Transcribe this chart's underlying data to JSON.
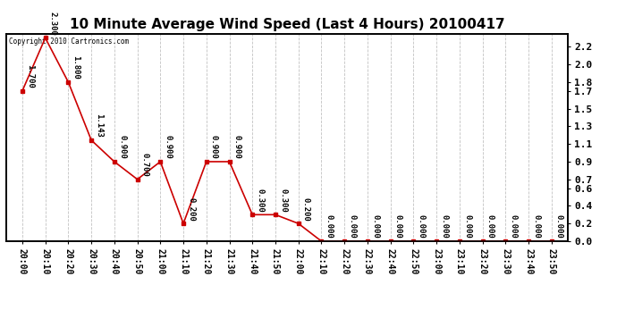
{
  "title": "10 Minute Average Wind Speed (Last 4 Hours) 20100417",
  "copyright_text": "Copyright 2010 Cartronics.com",
  "x_labels": [
    "20:00",
    "20:10",
    "20:20",
    "20:30",
    "20:40",
    "20:50",
    "21:00",
    "21:10",
    "21:20",
    "21:30",
    "21:40",
    "21:50",
    "22:00",
    "22:10",
    "22:20",
    "22:30",
    "22:40",
    "22:50",
    "23:00",
    "23:10",
    "23:20",
    "23:30",
    "23:40",
    "23:50"
  ],
  "y_values": [
    1.7,
    2.3,
    1.8,
    1.143,
    0.9,
    0.7,
    0.9,
    0.2,
    0.9,
    0.9,
    0.3,
    0.3,
    0.2,
    0.0,
    0.0,
    0.0,
    0.0,
    0.0,
    0.0,
    0.0,
    0.0,
    0.0,
    0.0,
    0.0
  ],
  "y_ticks": [
    0.0,
    0.2,
    0.4,
    0.6,
    0.7,
    0.9,
    1.1,
    1.3,
    1.5,
    1.7,
    1.8,
    2.0,
    2.2
  ],
  "ylim": [
    0.0,
    2.35
  ],
  "line_color": "#cc0000",
  "marker_color": "#cc0000",
  "bg_color": "#ffffff",
  "grid_color": "#bbbbbb",
  "title_fontsize": 11,
  "label_fontsize": 7,
  "annotation_fontsize": 6.5,
  "copyright_fontsize": 5.5
}
